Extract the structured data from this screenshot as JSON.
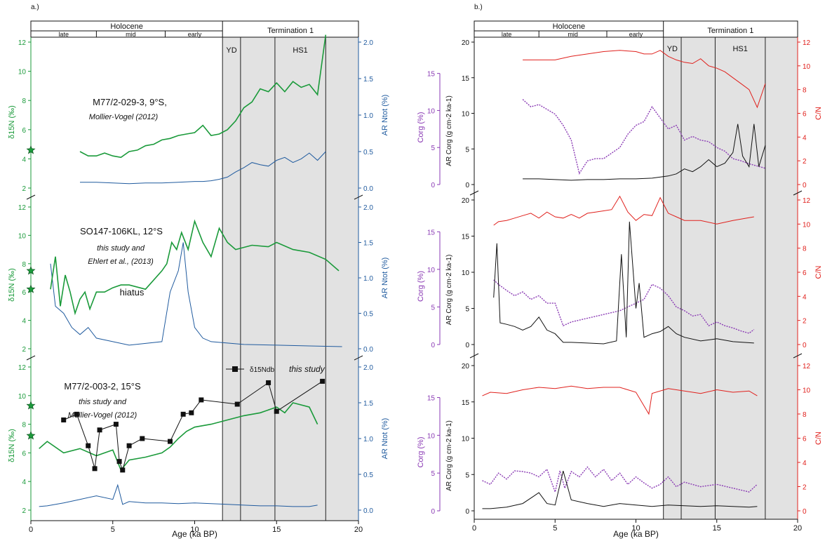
{
  "colors": {
    "d15n": "#1a9a3a",
    "ar_ntot": "#1f5a9e",
    "corg": "#8a3ab4",
    "cn": "#e0201c",
    "ar_corg": "#111111",
    "shade": "#e2e2e2",
    "db": "#111111"
  },
  "panel_a": {
    "label": "a.)",
    "epochs": {
      "holocene": "Holocene",
      "termination": "Termination 1",
      "late": "late",
      "mid": "mid",
      "early": "early"
    },
    "events": {
      "yd": "YD",
      "hs1": "HS1"
    },
    "xlabel": "Age (ka BP)",
    "xticks": [
      "0",
      "5",
      "10",
      "15",
      "20"
    ],
    "left_label": "δ15N (‰)",
    "right_label": "AR Ntot (%)",
    "left_ticks": [
      "2",
      "4",
      "6",
      "8",
      "10",
      "12"
    ],
    "right_ticks": [
      "0.0",
      "0.5",
      "1.0",
      "1.5",
      "2.0"
    ],
    "core1": {
      "name": "M77/2-029-3, 9°S,",
      "ref": "Mollier-Vogel  (2012)"
    },
    "core2": {
      "name": "SO147-106KL, 12°S",
      "ref1": "this study and",
      "ref2": "Ehlert et al., (2013)",
      "note": "hiatus"
    },
    "core3": {
      "name": "M77/2-003-2, 15°S",
      "ref1": "this study and",
      "ref2": "Mollier-Vogel  (2012)",
      "legend": "δ15Ndb",
      "legend_ref": "this study"
    }
  },
  "panel_b": {
    "label": "b.)",
    "xlabel": "Age (ka BP)",
    "xticks": [
      "0",
      "5",
      "10",
      "15",
      "20"
    ],
    "corg_label": "Corg (%)",
    "ar_label": "AR Corg (g cm-2 ka-1)",
    "cn_label": "C/N",
    "corg_ticks": [
      "0",
      "5",
      "10",
      "15"
    ],
    "ar_ticks": [
      "0",
      "5",
      "10",
      "15",
      "20"
    ],
    "cn_ticks": [
      "0",
      "2",
      "4",
      "6",
      "8",
      "10",
      "12"
    ]
  },
  "chart_data": [
    {
      "type": "line",
      "panel": "a-top",
      "xlim": [
        0,
        20
      ],
      "ylim_left": [
        2,
        12
      ],
      "ylim_right": [
        0,
        2
      ],
      "series": [
        {
          "name": "δ15N",
          "x": [
            3,
            3.5,
            4,
            4.5,
            5,
            5.5,
            6,
            6.5,
            7,
            7.5,
            8,
            8.5,
            9,
            9.5,
            10,
            10.5,
            11,
            11.5,
            12,
            12.5,
            13,
            13.5,
            14,
            14.5,
            15,
            15.5,
            16,
            16.5,
            17,
            17.5,
            18
          ],
          "values": [
            4.5,
            4.2,
            4.2,
            4.4,
            4.2,
            4.1,
            4.5,
            4.6,
            4.9,
            5.0,
            5.3,
            5.4,
            5.6,
            5.7,
            5.8,
            6.3,
            5.6,
            5.7,
            6.0,
            6.6,
            7.5,
            7.9,
            8.8,
            8.6,
            9.2,
            8.6,
            9.3,
            8.9,
            9.1,
            8.4,
            12.5
          ]
        },
        {
          "name": "AR Ntot",
          "x": [
            3,
            4,
            5,
            6,
            7,
            8,
            9,
            10,
            10.5,
            11,
            11.5,
            12,
            12.5,
            13,
            13.5,
            14,
            14.5,
            15,
            15.5,
            16,
            16.5,
            17,
            17.5,
            18
          ],
          "values": [
            0.08,
            0.08,
            0.07,
            0.06,
            0.07,
            0.07,
            0.08,
            0.09,
            0.09,
            0.1,
            0.12,
            0.15,
            0.22,
            0.28,
            0.35,
            0.32,
            0.3,
            0.38,
            0.42,
            0.35,
            0.4,
            0.48,
            0.38,
            0.5
          ]
        }
      ],
      "markers": [
        {
          "x": 0,
          "y": 4.6
        }
      ]
    },
    {
      "type": "line",
      "panel": "a-middle",
      "xlim": [
        0,
        20
      ],
      "ylim_left": [
        2,
        12
      ],
      "ylim_right": [
        0,
        2
      ],
      "series": [
        {
          "name": "δ15N",
          "x": [
            1.2,
            1.5,
            1.8,
            2.1,
            2.4,
            2.7,
            3.0,
            3.3,
            3.6,
            4.0,
            4.5,
            5.0,
            5.5,
            6.0,
            7.0,
            8.0,
            8.3,
            8.6,
            8.9,
            9.2,
            9.6,
            10.0,
            10.5,
            11.0,
            11.5,
            12.0,
            12.5,
            13.5,
            14.5,
            15.0,
            16.0,
            17.0,
            18.0,
            18.8
          ],
          "values": [
            6.2,
            8.5,
            5.0,
            7.2,
            6.0,
            4.5,
            5.5,
            6.0,
            4.8,
            6.0,
            6.0,
            6.3,
            6.5,
            6.5,
            6.2,
            7.5,
            8.0,
            9.5,
            9.0,
            10.2,
            9.0,
            11.0,
            9.5,
            8.5,
            10.5,
            9.5,
            9.0,
            9.3,
            9.2,
            9.5,
            9.0,
            8.8,
            8.3,
            7.5
          ]
        },
        {
          "name": "AR Ntot",
          "x": [
            1.2,
            1.5,
            2.0,
            2.5,
            3.0,
            3.5,
            4.0,
            5.0,
            6.0,
            8.0,
            8.5,
            9.0,
            9.3,
            9.6,
            10.0,
            10.5,
            11.0,
            12.0,
            13.0,
            15.0,
            17.0,
            19.0
          ],
          "values": [
            1.2,
            0.6,
            0.5,
            0.3,
            0.2,
            0.3,
            0.15,
            0.1,
            0.05,
            0.1,
            0.8,
            1.1,
            1.5,
            0.8,
            0.3,
            0.15,
            0.1,
            0.08,
            0.06,
            0.05,
            0.04,
            0.03
          ]
        }
      ],
      "markers": [
        {
          "x": 0,
          "y": 7.5
        },
        {
          "x": 0,
          "y": 6.2
        }
      ]
    },
    {
      "type": "line",
      "panel": "a-bottom",
      "xlim": [
        0,
        20
      ],
      "ylim_left": [
        2,
        12
      ],
      "ylim_right": [
        0,
        2
      ],
      "series": [
        {
          "name": "δ15N",
          "x": [
            0.5,
            1,
            2,
            3,
            4,
            5,
            5.5,
            6,
            7,
            8,
            8.5,
            9,
            9.5,
            10,
            11,
            12,
            13,
            14,
            15,
            15.5,
            16,
            17,
            17.5
          ],
          "values": [
            6.3,
            6.8,
            6.0,
            6.3,
            5.8,
            6.2,
            4.8,
            5.5,
            5.7,
            6.0,
            6.4,
            7.0,
            7.5,
            7.8,
            8.0,
            8.3,
            8.6,
            8.8,
            9.2,
            8.8,
            9.5,
            9.2,
            8.0
          ]
        },
        {
          "name": "AR Ntot",
          "x": [
            0.5,
            1,
            2,
            3,
            4,
            5,
            5.3,
            5.6,
            6,
            7,
            8,
            9,
            10,
            11,
            12,
            13,
            14,
            15,
            16,
            17,
            17.5
          ],
          "values": [
            0.05,
            0.06,
            0.1,
            0.15,
            0.2,
            0.15,
            0.35,
            0.08,
            0.12,
            0.1,
            0.1,
            0.09,
            0.1,
            0.09,
            0.08,
            0.07,
            0.06,
            0.06,
            0.05,
            0.05,
            0.07
          ]
        },
        {
          "name": "δ15Ndb",
          "x": [
            2.0,
            2.8,
            3.5,
            3.9,
            4.2,
            5.2,
            5.4,
            5.6,
            6.0,
            6.8,
            8.5,
            9.3,
            9.8,
            10.4,
            12.6,
            14.5,
            15.0,
            17.8
          ],
          "values": [
            8.3,
            8.7,
            6.5,
            4.9,
            7.6,
            8.0,
            5.4,
            4.8,
            6.5,
            7.0,
            6.8,
            8.7,
            8.8,
            9.7,
            9.4,
            10.9,
            8.9,
            11.0
          ]
        }
      ],
      "markers": [
        {
          "x": 0,
          "y": 9.3
        },
        {
          "x": 0,
          "y": 7.2
        }
      ]
    },
    {
      "type": "line",
      "panel": "b-top",
      "xlim": [
        0,
        20
      ],
      "ylim_corg": [
        0,
        15
      ],
      "ylim_ar": [
        0,
        20
      ],
      "ylim_cn": [
        0,
        12
      ],
      "series": [
        {
          "name": "C/N",
          "x": [
            3,
            4,
            5,
            6,
            7,
            8,
            9,
            10,
            10.5,
            11,
            11.5,
            12,
            12.5,
            13,
            13.5,
            14,
            14.5,
            15,
            15.5,
            16,
            16.5,
            17,
            17.5,
            18
          ],
          "values": [
            10.5,
            10.5,
            10.5,
            10.8,
            11,
            11.2,
            11.3,
            11.2,
            11,
            11,
            11.3,
            10.8,
            10.5,
            10.3,
            10.2,
            10.6,
            10,
            9.8,
            9.5,
            9,
            8.5,
            8,
            6.5,
            8.5
          ]
        },
        {
          "name": "Corg",
          "x": [
            3,
            3.5,
            4,
            5,
            5.5,
            6,
            6.5,
            7,
            7.5,
            8,
            9,
            9.5,
            10,
            10.5,
            11,
            11.5,
            12,
            12.5,
            13,
            13.5,
            14,
            14.5,
            15,
            15.5,
            16,
            16.5,
            17,
            17.5,
            18
          ],
          "values": [
            11.5,
            10.5,
            10.8,
            9.5,
            8,
            6,
            1.5,
            3.2,
            3.5,
            3.5,
            5,
            6.8,
            8,
            8.5,
            10.5,
            9,
            7.5,
            8,
            6,
            6.5,
            6,
            5.8,
            5,
            4.5,
            3.5,
            3.2,
            2.8,
            2.5,
            2.2
          ]
        },
        {
          "name": "AR Corg",
          "x": [
            3,
            4,
            5,
            6,
            7,
            8,
            9,
            10,
            11,
            12,
            12.5,
            13,
            13.5,
            14,
            14.5,
            15,
            15.5,
            16,
            16.3,
            16.6,
            17,
            17.3,
            17.6,
            18
          ],
          "values": [
            0.8,
            0.8,
            0.7,
            0.6,
            0.7,
            0.7,
            0.8,
            0.8,
            0.9,
            1.2,
            1.5,
            2.2,
            1.8,
            2.5,
            3.5,
            2.5,
            3,
            4.5,
            8.5,
            4,
            2.5,
            8.5,
            2.5,
            5.5
          ]
        }
      ]
    },
    {
      "type": "line",
      "panel": "b-middle",
      "xlim": [
        0,
        20
      ],
      "ylim_corg": [
        0,
        15
      ],
      "ylim_ar": [
        0,
        20
      ],
      "ylim_cn": [
        0,
        12
      ],
      "series": [
        {
          "name": "C/N",
          "x": [
            1.2,
            1.5,
            2,
            2.5,
            3,
            3.5,
            4,
            4.5,
            5,
            5.5,
            6,
            6.5,
            7,
            7.5,
            8,
            8.5,
            9,
            9.5,
            10,
            10.5,
            11,
            11.5,
            12,
            12.5,
            13,
            14,
            15,
            16,
            17.3
          ],
          "values": [
            9.9,
            10.2,
            10.3,
            10.5,
            10.7,
            10.9,
            10.5,
            11,
            10.6,
            10.5,
            10.8,
            10.5,
            10.9,
            11,
            11.1,
            11.2,
            12.3,
            11,
            10.3,
            10.8,
            10.7,
            12.2,
            10.9,
            10.6,
            10.3,
            10.3,
            10.0,
            10.3,
            10.6
          ]
        },
        {
          "name": "Corg",
          "x": [
            1.2,
            1.5,
            2,
            2.5,
            3,
            3.5,
            4,
            4.5,
            5,
            5.5,
            6,
            7,
            8,
            9,
            9.5,
            10,
            10.5,
            11,
            11.5,
            12,
            12.5,
            13,
            13.5,
            14,
            14.5,
            15,
            15.5,
            16,
            16.5,
            17,
            17.3
          ],
          "values": [
            8.6,
            8,
            7.2,
            6.5,
            7,
            6,
            6.5,
            5.5,
            5.5,
            2.5,
            3,
            3.5,
            4,
            4.5,
            5,
            5.5,
            6,
            8,
            7.5,
            6.5,
            5,
            4.5,
            3.8,
            4,
            2.5,
            3,
            2.5,
            2.2,
            1.8,
            1.5,
            2
          ]
        },
        {
          "name": "AR Corg",
          "x": [
            1.2,
            1.4,
            1.6,
            2,
            2.5,
            3,
            3.5,
            4,
            4.5,
            5,
            5.5,
            6,
            7,
            8,
            8.8,
            9.1,
            9.4,
            9.6,
            10,
            10.2,
            10.5,
            11,
            11.5,
            12,
            12.5,
            13,
            14,
            15,
            16,
            17.3
          ],
          "values": [
            6.5,
            14,
            3,
            2.8,
            2.5,
            2,
            2.5,
            3.8,
            2,
            1.5,
            0.3,
            0.3,
            0.2,
            0.1,
            0.5,
            12.5,
            1,
            17,
            5,
            8.5,
            1,
            1.5,
            1.8,
            2.5,
            1.5,
            1,
            0.5,
            0.8,
            0.4,
            0.2
          ]
        }
      ]
    },
    {
      "type": "line",
      "panel": "b-bottom",
      "xlim": [
        0,
        20
      ],
      "ylim_corg": [
        0,
        15
      ],
      "ylim_ar": [
        0,
        20
      ],
      "ylim_cn": [
        0,
        12
      ],
      "series": [
        {
          "name": "C/N",
          "x": [
            0.5,
            1,
            2,
            3,
            4,
            5,
            6,
            7,
            8,
            9,
            10,
            10.8,
            11,
            12,
            13,
            14,
            15,
            16,
            17,
            17.5
          ],
          "values": [
            9.5,
            9.8,
            9.7,
            10,
            10.2,
            10.1,
            10.3,
            10.1,
            10.2,
            10.2,
            9.8,
            8,
            9.7,
            10.1,
            9.9,
            9.7,
            10.0,
            9.8,
            9.9,
            9.5
          ]
        },
        {
          "name": "Corg",
          "x": [
            0.5,
            1,
            1.5,
            2,
            2.5,
            3,
            3.5,
            4,
            4.5,
            5,
            5.3,
            5.6,
            6,
            6.5,
            7,
            7.5,
            8,
            8.5,
            9,
            9.5,
            10,
            10.5,
            11,
            11.5,
            12,
            12.5,
            13,
            14,
            15,
            16,
            17,
            17.5
          ],
          "values": [
            4,
            3.5,
            5,
            4.2,
            5.3,
            5.2,
            5,
            4.5,
            5.5,
            2.5,
            5.3,
            3,
            5.2,
            4.5,
            5.8,
            4.5,
            5.5,
            4,
            5,
            3.5,
            4.5,
            3.7,
            3,
            3.5,
            4.5,
            3.2,
            3.8,
            3.2,
            3.5,
            3,
            2.5,
            3.5
          ]
        },
        {
          "name": "AR Corg",
          "x": [
            0.5,
            1,
            2,
            3,
            4,
            4.5,
            5,
            5.5,
            6,
            7,
            8,
            9,
            10,
            11,
            12,
            13,
            14,
            15,
            16,
            17,
            17.5
          ],
          "values": [
            0.3,
            0.3,
            0.5,
            1,
            2.5,
            1,
            0.8,
            5.5,
            1.5,
            1,
            0.6,
            1,
            0.8,
            0.6,
            0.8,
            0.7,
            0.6,
            0.7,
            0.6,
            0.5,
            0.6
          ]
        }
      ]
    }
  ]
}
